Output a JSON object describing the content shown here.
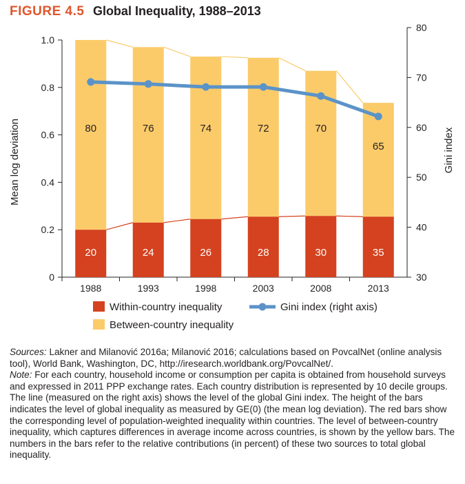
{
  "figure": {
    "label": "FIGURE 4.5",
    "title": "Global Inequality, 1988–2013"
  },
  "chart_data": {
    "type": "bar",
    "stacked": true,
    "categories": [
      "1988",
      "1993",
      "1998",
      "2003",
      "2008",
      "2013"
    ],
    "totals": [
      1.0,
      0.97,
      0.93,
      0.925,
      0.87,
      0.735
    ],
    "series": [
      {
        "name": "Within-country inequality",
        "values": [
          0.2,
          0.23,
          0.245,
          0.255,
          0.258,
          0.255
        ],
        "labels": [
          "20",
          "24",
          "26",
          "28",
          "30",
          "35"
        ],
        "color": "#d4421f"
      },
      {
        "name": "Between-country inequality",
        "values": [
          0.8,
          0.74,
          0.685,
          0.67,
          0.612,
          0.48
        ],
        "labels": [
          "80",
          "76",
          "74",
          "72",
          "70",
          "65"
        ],
        "color": "#fbcb6a"
      }
    ],
    "line": {
      "name": "Gini index (right axis)",
      "axis": "right",
      "values": [
        69.1,
        68.7,
        68.1,
        68.1,
        66.3,
        62.2
      ],
      "color": "#5b93c8"
    },
    "left_axis": {
      "label": "Mean log deviation",
      "min": 0,
      "max": 1.0,
      "ticks": [
        "0",
        "0.2",
        "0.4",
        "0.6",
        "0.8",
        "1.0"
      ]
    },
    "right_axis": {
      "label": "Gini index",
      "min": 30,
      "max": 80,
      "ticks": [
        "30",
        "40",
        "50",
        "60",
        "70",
        "80"
      ]
    },
    "legend_position": "bottom"
  },
  "notes": {
    "sources_label": "Sources:",
    "sources_text": "Lakner and Milanović 2016a; Milanović 2016; calculations based on PovcalNet (online analysis tool), World Bank, Washington, DC, http://iresearch.worldbank.org/PovcalNet/.",
    "note_label": "Note:",
    "note_text": "For each country, household income or consumption per capita is obtained from household surveys and expressed in 2011 PPP exchange rates. Each country distribution is represented by 10 decile groups. The line (measured on the right axis) shows the level of the global Gini index. The height of the bars indicates the level of global inequality as measured by GE(0) (the mean log deviation). The red bars show the corresponding level of population-weighted inequality within countries. The level of between-country inequality, which captures differences in average income across countries, is shown by the yellow bars. The numbers in the bars refer to the relative contributions (in percent) of these two sources to total global inequality."
  }
}
